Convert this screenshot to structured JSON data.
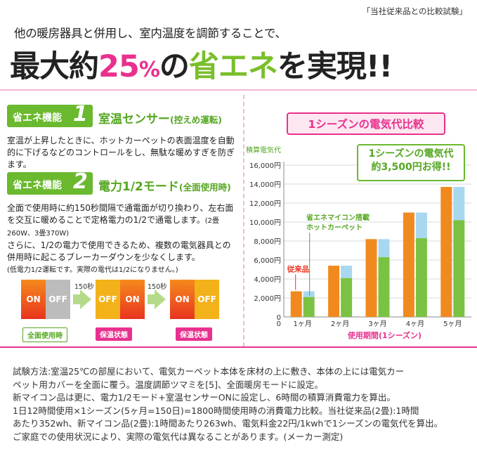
{
  "header": {
    "tag": "「当社従来品との比較試験」",
    "subtitle": "他の暖房器具と併用し、室内温度を調節することで、",
    "headline_pre": "最大約",
    "headline_num": "25",
    "headline_pct": "%",
    "headline_mid": "の",
    "headline_key": "省エネ",
    "headline_post": "を実現!!"
  },
  "feature1": {
    "label": "省エネ機能",
    "num": "1",
    "title": "室温センサー",
    "title_note": "(控えめ運転)",
    "text": "室温が上昇したときに、ホットカーペットの表面温度を自動的に下げるなどのコントロールをし、無駄な暖めすぎを防ぎます。"
  },
  "feature2": {
    "label": "省エネ機能",
    "num": "2",
    "title": "電力1/2モード",
    "title_note": "(全面使用時)",
    "text1": "全面で使用時に約150秒間隔で通電面が切り換わり、左右面を交互に暖めることで定格電力の1/2で通電します。",
    "text1_note": "(2畳260W、3畳370W)",
    "text2": "さらに、1/2の電力で使用できるため、複数の電気器具との併用時に起こるブレーカーダウンを少なくします。",
    "text3": "(低電力1/2運転です。実際の電代は1/2になりません。)"
  },
  "diagram": {
    "on": "ON",
    "off": "OFF",
    "seconds1": "150秒",
    "seconds2": "150秒",
    "label_full": "全面使用時",
    "label_warm1": "保温状態",
    "label_warm2": "保温状態"
  },
  "chart_title": "1シーズンの電気代比較",
  "callout": {
    "line1": "1シーズンの電気代",
    "line2": "約3,500円お得!!"
  },
  "chart_data": {
    "type": "bar",
    "ylabel": "積算電気代",
    "xlabel": "使用期間(1シーズン)",
    "categories": [
      "1ヶ月",
      "2ヶ月",
      "3ヶ月",
      "4ヶ月",
      "5ヶ月"
    ],
    "ylim": [
      0,
      16000
    ],
    "yticks": [
      "0",
      "2,000円",
      "4,000円",
      "6,000円",
      "8,000円",
      "10,000円",
      "12,000円",
      "14,000円",
      "16,000円"
    ],
    "series": [
      {
        "name": "従来品",
        "values": [
          2700,
          5400,
          8200,
          11000,
          13700
        ],
        "color": "#f08a1e"
      },
      {
        "name": "省エネマイコン搭載ホットカーペット",
        "values": [
          2100,
          4100,
          6300,
          8300,
          10200
        ],
        "color": "#7cc242",
        "difference_color": "#a8d8f0"
      }
    ],
    "legend_labels": {
      "old": "従来品",
      "new1": "省エネマイコン搭載",
      "new2": "ホットカーペット"
    }
  },
  "description": {
    "line1": "試験方法:室温25℃の部屋において、電気カーペット本体を床材の上に敷き、本体の上には電気カー",
    "line2": "ペット用カバーを全面に覆う。温度調節ツマミを[5]、全面暖房モードに設定。",
    "line3": "新マイコン品は更に、電力1/2モード+室温センサーONに設定し、6時間の積算消費電力を算出。",
    "line4": "1日12時間使用×1シーズン(5ヶ月=150日)=1800時間使用時の消費電力比較。当社従来品(2畳):1時間",
    "line5": "あたり352wh、新マイコン品(2畳):1時間あたり263wh、電気料金22円/1kwhで1シーズンの電気代を算出。",
    "line6": "ご家庭での使用状況により、実際の電気代は異なることがあります。(メーカー測定)"
  }
}
